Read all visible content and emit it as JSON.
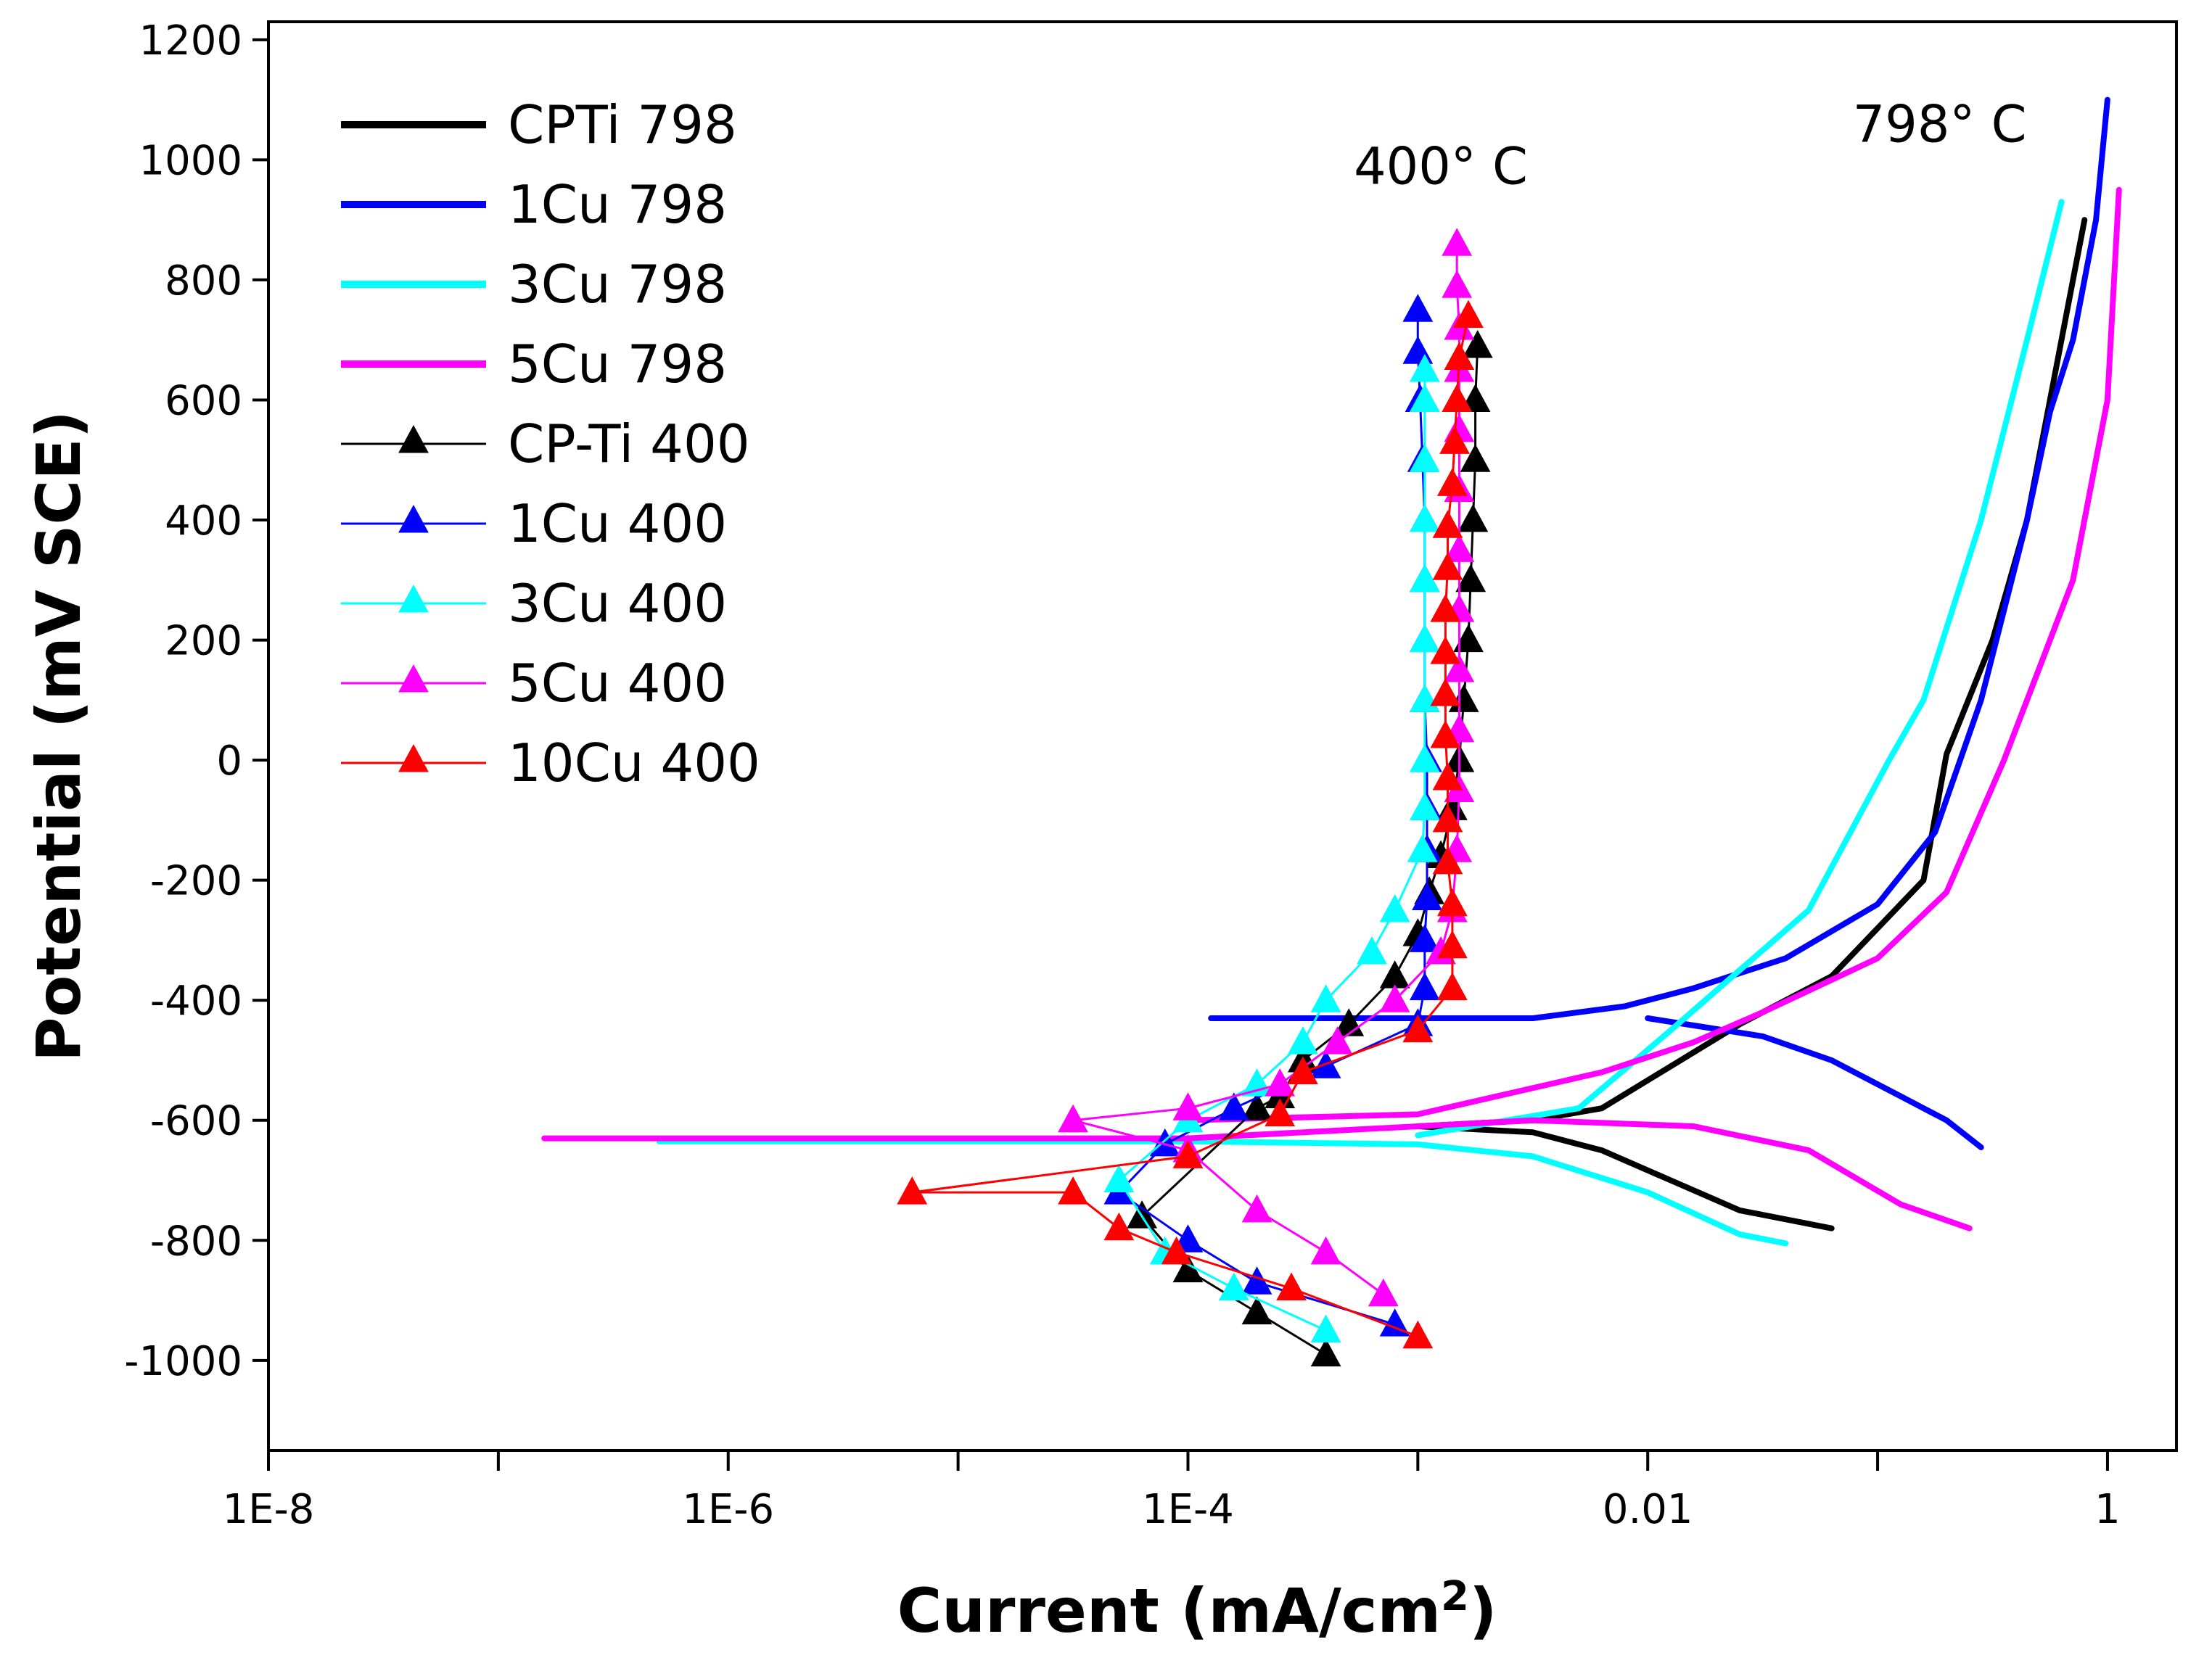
{
  "chart_data": {
    "type": "line",
    "title": "",
    "xlabel": "Current (mA/cm",
    "xlabel_sup": "2",
    "xlabel_end": ")",
    "ylabel": "Potential (mV SCE)",
    "xscale": "log",
    "xlim_log10": [
      -8,
      0.3
    ],
    "ylim": [
      -1150,
      1230
    ],
    "x_ticks": [
      {
        "log": -8,
        "label": "1E-8"
      },
      {
        "log": -6,
        "label": "1E-6"
      },
      {
        "log": -4,
        "label": "1E-4"
      },
      {
        "log": -2,
        "label": "0.01"
      },
      {
        "log": 0,
        "label": "1"
      }
    ],
    "x_minor_ticks": [
      -7,
      -5,
      -3,
      -1
    ],
    "y_ticks": [
      {
        "value": 1200,
        "label": "1200"
      },
      {
        "value": 1000,
        "label": "1000"
      },
      {
        "value": 800,
        "label": "800"
      },
      {
        "value": 600,
        "label": "600"
      },
      {
        "value": 400,
        "label": "400"
      },
      {
        "value": 200,
        "label": "200"
      },
      {
        "value": 0,
        "label": "0"
      },
      {
        "value": -200,
        "label": "-200"
      },
      {
        "value": -400,
        "label": "-400"
      },
      {
        "value": -600,
        "label": "-600"
      },
      {
        "value": -800,
        "label": "-800"
      },
      {
        "value": -1000,
        "label": "-1000"
      }
    ],
    "legend_position": "top-left",
    "annotations": [
      {
        "text": "400° C",
        "x_log": -2.9,
        "y": 960
      },
      {
        "text": "798° C",
        "x_log": -0.73,
        "y": 1030
      }
    ],
    "series": [
      {
        "name": "CPTi 798",
        "color": "#000000",
        "style": "line",
        "cathodic": [
          [
            -3.0,
            -610
          ],
          [
            -2.5,
            -620
          ],
          [
            -2.2,
            -650
          ],
          [
            -1.9,
            -700
          ],
          [
            -1.6,
            -750
          ],
          [
            -1.2,
            -780
          ]
        ],
        "anodic": [
          [
            -3.0,
            -610
          ],
          [
            -2.5,
            -600
          ],
          [
            -2.2,
            -580
          ],
          [
            -1.9,
            -510
          ],
          [
            -1.6,
            -440
          ],
          [
            -1.2,
            -360
          ],
          [
            -1.0,
            -280
          ],
          [
            -0.8,
            -200
          ],
          [
            -0.7,
            10
          ],
          [
            -0.5,
            200
          ],
          [
            -0.35,
            400
          ],
          [
            -0.25,
            600
          ],
          [
            -0.15,
            800
          ],
          [
            -0.1,
            900
          ]
        ]
      },
      {
        "name": "1Cu 798",
        "color": "#0000ff",
        "style": "line",
        "cathodic": [
          [
            -2.0,
            -430
          ],
          [
            -1.5,
            -460
          ],
          [
            -1.2,
            -500
          ],
          [
            -0.9,
            -560
          ],
          [
            -0.7,
            -600
          ],
          [
            -0.55,
            -645
          ]
        ],
        "anodic": [
          [
            -3.9,
            -430
          ],
          [
            -2.5,
            -430
          ],
          [
            -2.1,
            -410
          ],
          [
            -1.8,
            -380
          ],
          [
            -1.4,
            -330
          ],
          [
            -1.0,
            -240
          ],
          [
            -0.75,
            -120
          ],
          [
            -0.55,
            100
          ],
          [
            -0.35,
            400
          ],
          [
            -0.25,
            580
          ],
          [
            -0.15,
            700
          ],
          [
            -0.05,
            900
          ],
          [
            0.0,
            1100
          ]
        ]
      },
      {
        "name": "3Cu 798",
        "color": "#00ffff",
        "style": "line",
        "cathodic": [
          [
            -6.3,
            -635
          ],
          [
            -4.0,
            -635
          ],
          [
            -3.0,
            -640
          ],
          [
            -2.5,
            -660
          ],
          [
            -2.0,
            -720
          ],
          [
            -1.6,
            -790
          ],
          [
            -1.4,
            -805
          ]
        ],
        "anodic": [
          [
            -3.0,
            -625
          ],
          [
            -2.3,
            -580
          ],
          [
            -1.9,
            -450
          ],
          [
            -1.75,
            -400
          ],
          [
            -1.3,
            -250
          ],
          [
            -0.95,
            0
          ],
          [
            -0.8,
            100
          ],
          [
            -0.55,
            400
          ],
          [
            -0.35,
            700
          ],
          [
            -0.2,
            930
          ]
        ]
      },
      {
        "name": "5Cu 798",
        "color": "#ff00ff",
        "style": "line",
        "cathodic": [
          [
            -6.8,
            -630
          ],
          [
            -4.0,
            -630
          ],
          [
            -2.5,
            -600
          ],
          [
            -1.8,
            -610
          ],
          [
            -1.3,
            -650
          ],
          [
            -0.9,
            -740
          ],
          [
            -0.6,
            -780
          ]
        ],
        "anodic": [
          [
            -4.0,
            -600
          ],
          [
            -3.0,
            -590
          ],
          [
            -2.2,
            -520
          ],
          [
            -1.8,
            -470
          ],
          [
            -1.5,
            -420
          ],
          [
            -1.0,
            -330
          ],
          [
            -0.7,
            -220
          ],
          [
            -0.45,
            0
          ],
          [
            -0.3,
            150
          ],
          [
            -0.15,
            300
          ],
          [
            0.0,
            600
          ],
          [
            0.05,
            950
          ]
        ]
      },
      {
        "name": "CP-Ti 400",
        "color": "#000000",
        "style": "marker-line",
        "points": [
          [
            -3.4,
            -990
          ],
          [
            -3.7,
            -920
          ],
          [
            -4.0,
            -850
          ],
          [
            -4.2,
            -760
          ],
          [
            -3.7,
            -580
          ],
          [
            -3.6,
            -560
          ],
          [
            -3.5,
            -500
          ],
          [
            -3.3,
            -440
          ],
          [
            -3.1,
            -360
          ],
          [
            -3.0,
            -290
          ],
          [
            -2.95,
            -220
          ],
          [
            -2.9,
            -160
          ],
          [
            -2.85,
            -80
          ],
          [
            -2.82,
            0
          ],
          [
            -2.8,
            100
          ],
          [
            -2.78,
            200
          ],
          [
            -2.77,
            300
          ],
          [
            -2.76,
            400
          ],
          [
            -2.75,
            500
          ],
          [
            -2.75,
            600
          ],
          [
            -2.74,
            690
          ]
        ]
      },
      {
        "name": "1Cu 400",
        "color": "#0000ff",
        "style": "marker-line",
        "points": [
          [
            -3.1,
            -940
          ],
          [
            -3.7,
            -870
          ],
          [
            -4.0,
            -800
          ],
          [
            -4.3,
            -720
          ],
          [
            -4.1,
            -640
          ],
          [
            -3.8,
            -580
          ],
          [
            -3.4,
            -510
          ],
          [
            -3.0,
            -440
          ],
          [
            -2.97,
            -380
          ],
          [
            -2.97,
            -300
          ],
          [
            -2.96,
            -230
          ],
          [
            -2.96,
            -150
          ],
          [
            -2.96,
            -80
          ],
          [
            -2.96,
            0
          ],
          [
            -2.97,
            100
          ],
          [
            -2.97,
            200
          ],
          [
            -2.97,
            300
          ],
          [
            -2.97,
            400
          ],
          [
            -2.98,
            500
          ],
          [
            -2.99,
            600
          ],
          [
            -3.0,
            680
          ],
          [
            -3.0,
            750
          ]
        ]
      },
      {
        "name": "3Cu 400",
        "color": "#00ffff",
        "style": "marker-line",
        "points": [
          [
            -3.4,
            -950
          ],
          [
            -3.8,
            -880
          ],
          [
            -4.1,
            -820
          ],
          [
            -4.3,
            -700
          ],
          [
            -4.0,
            -600
          ],
          [
            -3.7,
            -540
          ],
          [
            -3.5,
            -470
          ],
          [
            -3.4,
            -400
          ],
          [
            -3.2,
            -320
          ],
          [
            -3.1,
            -250
          ],
          [
            -2.98,
            -150
          ],
          [
            -2.97,
            -80
          ],
          [
            -2.97,
            0
          ],
          [
            -2.97,
            100
          ],
          [
            -2.97,
            200
          ],
          [
            -2.97,
            300
          ],
          [
            -2.97,
            400
          ],
          [
            -2.97,
            500
          ],
          [
            -2.97,
            600
          ],
          [
            -2.97,
            650
          ]
        ]
      },
      {
        "name": "5Cu 400",
        "color": "#ff00ff",
        "style": "marker-line",
        "points": [
          [
            -3.15,
            -890
          ],
          [
            -3.4,
            -820
          ],
          [
            -3.7,
            -750
          ],
          [
            -4.0,
            -650
          ],
          [
            -4.5,
            -600
          ],
          [
            -4.0,
            -580
          ],
          [
            -3.6,
            -540
          ],
          [
            -3.35,
            -470
          ],
          [
            -3.1,
            -400
          ],
          [
            -2.9,
            -320
          ],
          [
            -2.85,
            -250
          ],
          [
            -2.83,
            -150
          ],
          [
            -2.82,
            -50
          ],
          [
            -2.82,
            50
          ],
          [
            -2.82,
            150
          ],
          [
            -2.82,
            250
          ],
          [
            -2.82,
            350
          ],
          [
            -2.82,
            450
          ],
          [
            -2.82,
            550
          ],
          [
            -2.82,
            650
          ],
          [
            -2.82,
            720
          ],
          [
            -2.83,
            790
          ],
          [
            -2.83,
            860
          ]
        ]
      },
      {
        "name": "10Cu 400",
        "color": "#ff0000",
        "style": "marker-line",
        "points": [
          [
            -3.0,
            -960
          ],
          [
            -3.55,
            -880
          ],
          [
            -4.05,
            -820
          ],
          [
            -4.3,
            -780
          ],
          [
            -4.5,
            -720
          ],
          [
            -5.2,
            -720
          ],
          [
            -4.0,
            -660
          ],
          [
            -3.6,
            -590
          ],
          [
            -3.5,
            -520
          ],
          [
            -3.0,
            -450
          ],
          [
            -2.85,
            -380
          ],
          [
            -2.85,
            -310
          ],
          [
            -2.85,
            -240
          ],
          [
            -2.87,
            -170
          ],
          [
            -2.87,
            -100
          ],
          [
            -2.87,
            -30
          ],
          [
            -2.88,
            40
          ],
          [
            -2.88,
            110
          ],
          [
            -2.88,
            180
          ],
          [
            -2.88,
            250
          ],
          [
            -2.87,
            320
          ],
          [
            -2.87,
            390
          ],
          [
            -2.85,
            460
          ],
          [
            -2.84,
            530
          ],
          [
            -2.83,
            600
          ],
          [
            -2.82,
            670
          ],
          [
            -2.78,
            740
          ]
        ]
      }
    ]
  }
}
